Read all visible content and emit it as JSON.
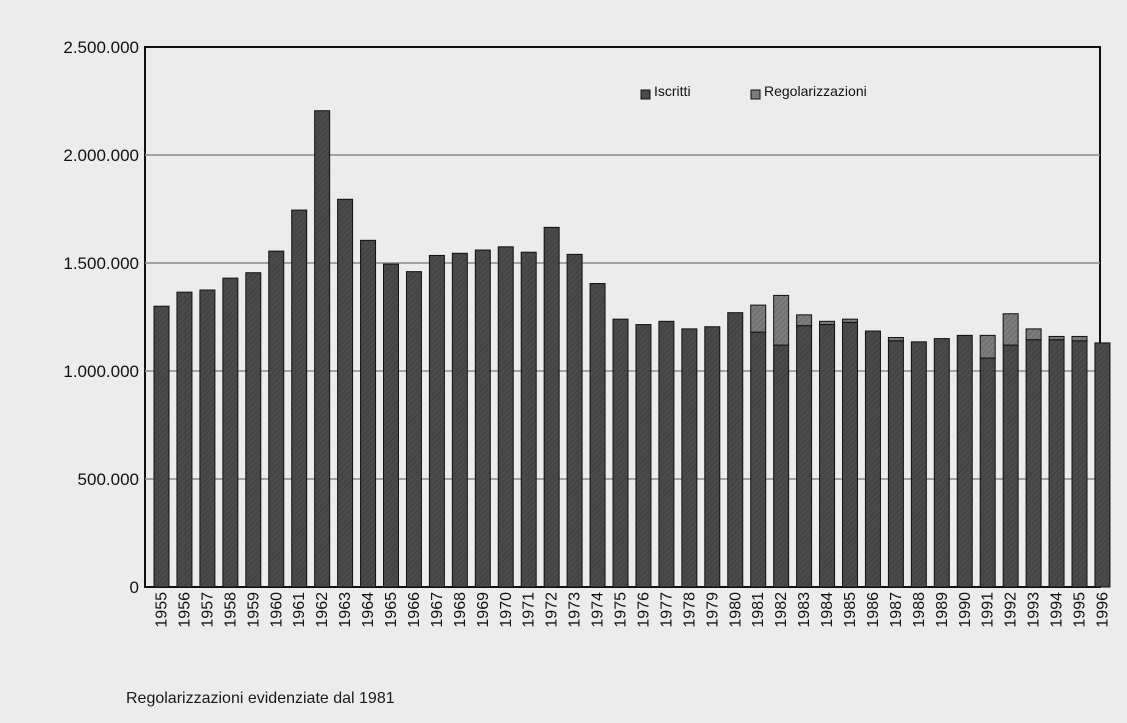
{
  "chart_data": {
    "type": "bar",
    "stacked": true,
    "title": "",
    "xlabel": "",
    "ylabel": "",
    "ylim": [
      0,
      2500000
    ],
    "yticks": [
      0,
      500000,
      1000000,
      1500000,
      2000000,
      2500000
    ],
    "ytick_labels": [
      "0",
      "500.000",
      "1.000.000",
      "1.500.000",
      "2.000.000",
      "2.500.000"
    ],
    "grid": true,
    "legend_position": "top-right",
    "categories": [
      "1955",
      "1956",
      "1957",
      "1958",
      "1959",
      "1960",
      "1961",
      "1962",
      "1963",
      "1964",
      "1965",
      "1966",
      "1967",
      "1968",
      "1969",
      "1970",
      "1971",
      "1972",
      "1973",
      "1974",
      "1975",
      "1976",
      "1977",
      "1978",
      "1979",
      "1980",
      "1981",
      "1982",
      "1983",
      "1984",
      "1985",
      "1986",
      "1987",
      "1988",
      "1989",
      "1990",
      "1991",
      "1992",
      "1993",
      "1994",
      "1995",
      "1996"
    ],
    "series": [
      {
        "name": "Iscritti",
        "color": "#4a4a4a",
        "values": [
          1300000,
          1365000,
          1375000,
          1430000,
          1455000,
          1555000,
          1745000,
          2205000,
          1795000,
          1605000,
          1495000,
          1460000,
          1535000,
          1545000,
          1560000,
          1575000,
          1550000,
          1665000,
          1540000,
          1405000,
          1240000,
          1215000,
          1230000,
          1195000,
          1205000,
          1270000,
          1180000,
          1120000,
          1210000,
          1215000,
          1225000,
          1185000,
          1140000,
          1135000,
          1150000,
          1165000,
          1060000,
          1120000,
          1145000,
          1145000,
          1140000,
          1130000
        ]
      },
      {
        "name": "Regolarizzazioni",
        "color": "#7c7c7c",
        "values": [
          0,
          0,
          0,
          0,
          0,
          0,
          0,
          0,
          0,
          0,
          0,
          0,
          0,
          0,
          0,
          0,
          0,
          0,
          0,
          0,
          0,
          0,
          0,
          0,
          0,
          0,
          125000,
          230000,
          50000,
          15000,
          15000,
          0,
          15000,
          0,
          0,
          0,
          105000,
          145000,
          50000,
          15000,
          20000,
          0
        ]
      }
    ]
  },
  "footnote": "Regolarizzazioni evidenziate dal 1981"
}
